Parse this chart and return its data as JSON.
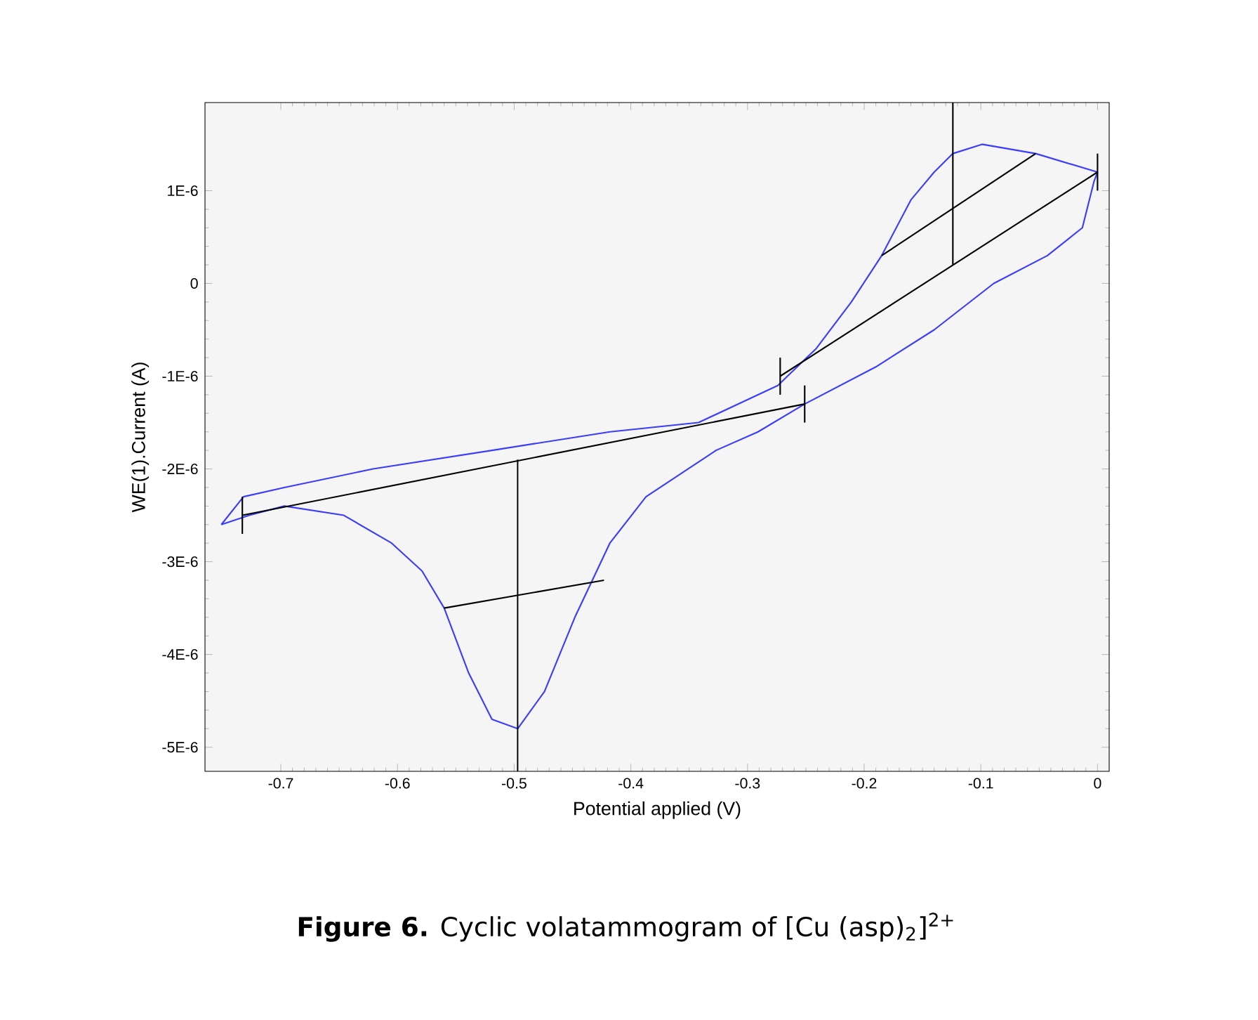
{
  "chart_data": {
    "type": "line",
    "xlabel": "Potential applied (V)",
    "ylabel": "WE(1).Current (A)",
    "annotations": [
      "**Figure 6.** Cyclic volatammogram of [Cu (asp)$_{2}$]$^{2+}$"
    ],
    "xlim": [
      -0.765,
      0.01
    ],
    "ylim": [
      -5.26e-06,
      1.95e-06
    ],
    "xticks": [
      -0.7,
      -0.6,
      -0.5,
      -0.4,
      -0.3,
      -0.2,
      -0.1,
      0
    ],
    "yticks": [
      {
        "value": 1e-06,
        "label": "1E-6"
      },
      0,
      {
        "value": -1e-06,
        "label": "-1E-6"
      },
      {
        "value": -2e-06,
        "label": "-2E-6"
      },
      {
        "value": -3e-06,
        "label": "-3E-6"
      },
      {
        "value": -4e-06,
        "label": "-4E-6"
      },
      {
        "value": -5e-06,
        "label": "-5E-6"
      }
    ],
    "marker": "none",
    "series": [
      {
        "color": "#3c3cff",
        "x": [
          -0.751,
          -0.727,
          -0.697,
          -0.646,
          -0.605,
          -0.579,
          -0.56,
          -0.539,
          -0.519,
          -0.497,
          -0.474,
          -0.448,
          -0.418,
          -0.387,
          -0.327,
          -0.291,
          -0.251,
          -0.19,
          -0.14,
          -0.089,
          -0.043,
          -0.013,
          -0.003,
          0
        ],
        "values": [
          -2.6e-06,
          -2.5e-06,
          -2.4e-06,
          -2.5e-06,
          -2.8e-06,
          -3.1e-06,
          -3.5e-06,
          -4.2e-06,
          -4.7e-06,
          -4.8e-06,
          -4.4e-06,
          -3.6e-06,
          -2.8e-06,
          -2.3e-06,
          -1.8e-06,
          -1.6e-06,
          -1.3e-06,
          -9e-07,
          -5e-07,
          0,
          3e-07,
          6e-07,
          1.1e-06,
          1.2e-06
        ]
      },
      {
        "color": "#3c3cff",
        "x": [
          -0.751,
          -0.732,
          -0.697,
          -0.621,
          -0.519,
          -0.418,
          -0.342,
          -0.274,
          -0.241,
          -0.211,
          -0.185,
          -0.16,
          -0.14,
          -0.124,
          -0.099,
          -0.053,
          0
        ],
        "values": [
          -2.6e-06,
          -2.3e-06,
          -2.2e-06,
          -2e-06,
          -1.8e-06,
          -1.6e-06,
          -1.5e-06,
          -1.1e-06,
          -7e-07,
          -2e-07,
          3e-07,
          9e-07,
          1.2e-06,
          1.4e-06,
          1.5e-06,
          1.4e-06,
          1.2e-06
        ]
      },
      {
        "color": "#000000",
        "x": [
          -0.272,
          0
        ],
        "values": [
          -1e-06,
          1.2e-06
        ]
      },
      {
        "color": "#000000",
        "x": [
          -0.185,
          -0.053
        ],
        "values": [
          3e-07,
          1.4e-06
        ]
      },
      {
        "color": "#000000",
        "x": [
          -0.124,
          -0.124
        ],
        "values": [
          1.95e-06,
          2e-07
        ]
      },
      {
        "color": "#000000",
        "x": [
          -0.733,
          -0.251
        ],
        "values": [
          -2.5e-06,
          -1.3e-06
        ]
      },
      {
        "color": "#000000",
        "x": [
          -0.497,
          -0.497
        ],
        "values": [
          -1.9e-06,
          -5.26e-06
        ]
      },
      {
        "color": "#000000",
        "x": [
          -0.56,
          -0.423
        ],
        "values": [
          -3.5e-06,
          -3.2e-06
        ]
      },
      {
        "color": "#000000",
        "x": [
          -0.733,
          -0.733
        ],
        "values": [
          -2.3e-06,
          -2.7e-06
        ]
      },
      {
        "color": "#000000",
        "x": [
          -0.272,
          -0.272
        ],
        "values": [
          -8e-07,
          -1.2e-06
        ]
      },
      {
        "color": "#000000",
        "x": [
          -0.251,
          -0.251
        ],
        "values": [
          -1.1e-06,
          -1.5e-06
        ]
      },
      {
        "color": "#000000",
        "x": [
          0,
          0
        ],
        "values": [
          1.4e-06,
          1e-06
        ]
      }
    ]
  }
}
